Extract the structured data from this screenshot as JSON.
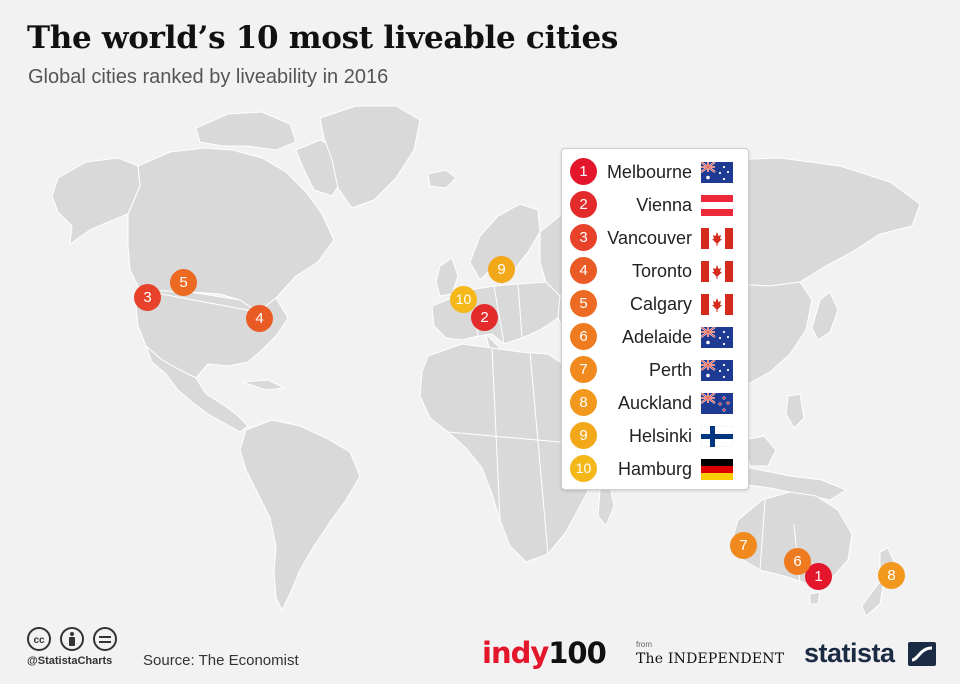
{
  "title": "The world’s 10 most liveable cities",
  "subtitle": "Global cities ranked by liveability in 2016",
  "colors": {
    "background": "#f2f2f2",
    "land": "#d9d9d9",
    "border": "#ffffff",
    "rank_red": "#e3162b",
    "rank_orange_dark": "#ea5a1f",
    "rank_orange": "#f08a1c",
    "rank_yellow": "#f4b41a"
  },
  "cities": [
    {
      "rank": "1",
      "name": "Melbourne",
      "country_flag": "australia-flag",
      "color": "#e3162b"
    },
    {
      "rank": "2",
      "name": "Vienna",
      "country_flag": "austria-flag",
      "color": "#e32b2b"
    },
    {
      "rank": "3",
      "name": "Vancouver",
      "country_flag": "canada-flag",
      "color": "#e8432a"
    },
    {
      "rank": "4",
      "name": "Toronto",
      "country_flag": "canada-flag",
      "color": "#ea5a24"
    },
    {
      "rank": "5",
      "name": "Calgary",
      "country_flag": "canada-flag",
      "color": "#ec6a22"
    },
    {
      "rank": "6",
      "name": "Adelaide",
      "country_flag": "australia-flag",
      "color": "#ef7b20"
    },
    {
      "rank": "7",
      "name": "Perth",
      "country_flag": "australia-flag",
      "color": "#f0891e"
    },
    {
      "rank": "8",
      "name": "Auckland",
      "country_flag": "new-zealand-flag",
      "color": "#f2981c"
    },
    {
      "rank": "9",
      "name": "Helsinki",
      "country_flag": "finland-flag",
      "color": "#f3a81a"
    },
    {
      "rank": "10",
      "name": "Hamburg",
      "country_flag": "germany-flag",
      "color": "#f4b81a"
    }
  ],
  "footer": {
    "license_icons": [
      "cc-icon",
      "by-icon",
      "nd-icon"
    ],
    "handle": "@StatistaCharts",
    "source": "Source: The Economist",
    "indy_a": "indy",
    "indy_b": "100",
    "from": "from",
    "independent": "The INDEPENDENT",
    "statista": "statista"
  }
}
